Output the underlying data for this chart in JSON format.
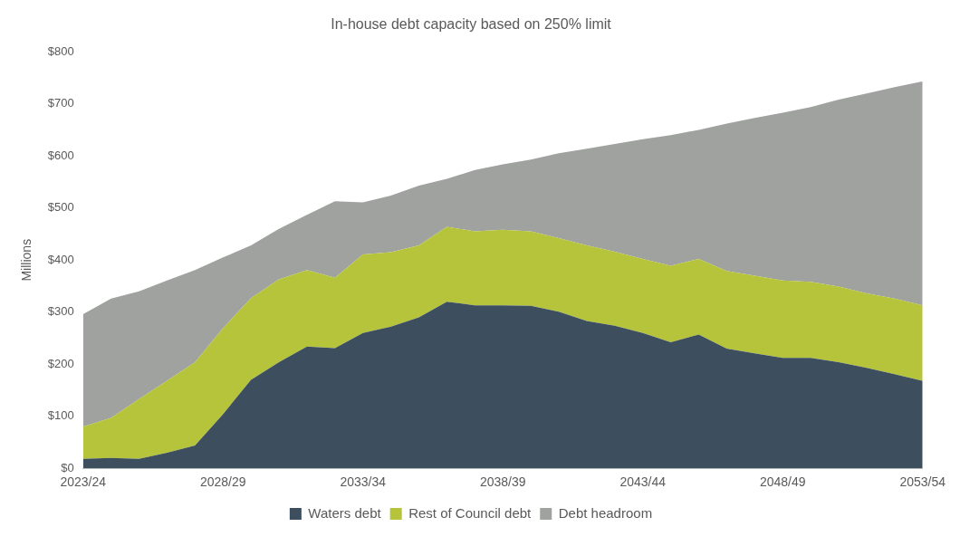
{
  "chart_data": {
    "type": "area",
    "title": "In-house debt capacity based on 250% limit",
    "ylabel": "Millions",
    "categories": [
      "2023/24",
      null,
      null,
      null,
      null,
      "2028/29",
      null,
      null,
      null,
      null,
      "2033/34",
      null,
      null,
      null,
      null,
      "2038/39",
      null,
      null,
      null,
      null,
      "2043/44",
      null,
      null,
      null,
      null,
      "2048/49",
      null,
      null,
      null,
      null,
      "2053/54"
    ],
    "series": [
      {
        "name": "Waters debt",
        "color": "#3d4f5f",
        "values": [
          18,
          20,
          18,
          30,
          44,
          104,
          170,
          204,
          234,
          231,
          260,
          272,
          290,
          320,
          313,
          313,
          312,
          301,
          283,
          274,
          260,
          242,
          257,
          230,
          221,
          212,
          212,
          204,
          193,
          181,
          168
        ]
      },
      {
        "name": "Rest of Council debt",
        "color": "#b5c43a",
        "values": [
          62,
          77,
          115,
          138,
          160,
          165,
          157,
          159,
          147,
          135,
          151,
          143,
          138,
          144,
          142,
          145,
          143,
          141,
          145,
          142,
          142,
          147,
          145,
          149,
          149,
          149,
          146,
          145,
          143,
          145,
          145
        ]
      },
      {
        "name": "Debt headroom",
        "color": "#a0a2a0",
        "values": [
          216,
          229,
          207,
          193,
          177,
          136,
          101,
          97,
          106,
          147,
          100,
          109,
          115,
          92,
          118,
          126,
          138,
          163,
          186,
          207,
          230,
          251,
          248,
          283,
          303,
          322,
          336,
          359,
          384,
          406,
          430
        ]
      }
    ],
    "stacked": true,
    "ylim": [
      0,
      800
    ],
    "yticks": [
      {
        "value": 0,
        "label": "$0"
      },
      {
        "value": 100,
        "label": "$100"
      },
      {
        "value": 200,
        "label": "$200"
      },
      {
        "value": 300,
        "label": "$300"
      },
      {
        "value": 400,
        "label": "$400"
      },
      {
        "value": 500,
        "label": "$500"
      },
      {
        "value": 600,
        "label": "$600"
      },
      {
        "value": 700,
        "label": "$700"
      },
      {
        "value": 800,
        "label": "$800"
      }
    ],
    "legend": "bottom"
  }
}
